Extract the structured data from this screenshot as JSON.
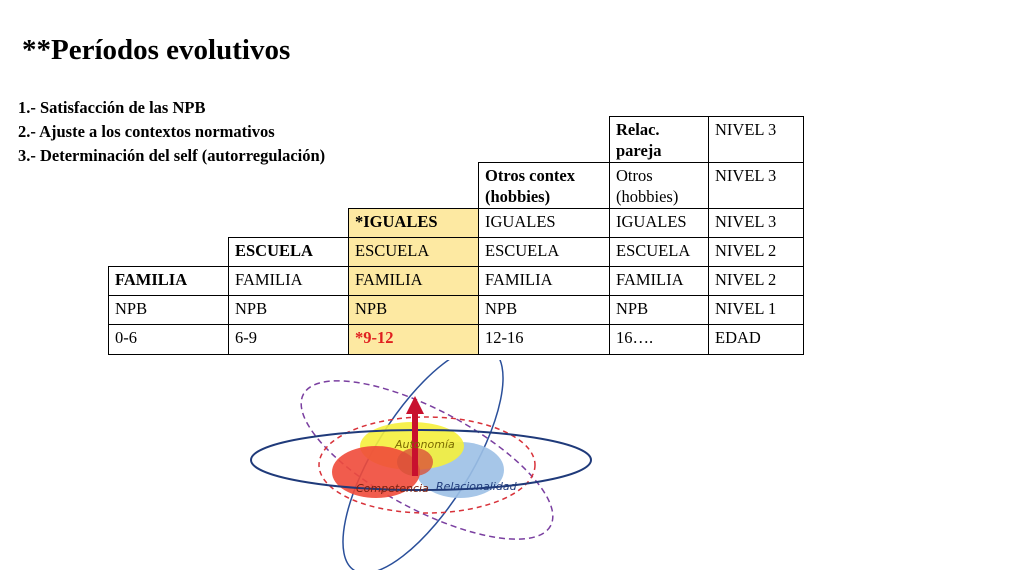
{
  "title": "**Períodos evolutivos",
  "points": [
    "1.- Satisfacción de las NPB",
    "2.- Ajuste a los contextos normativos",
    "3.- Determinación del self (autorregulación)"
  ],
  "table": {
    "row_relac": [
      "Relac. pareja",
      "NIVEL 3"
    ],
    "row_otros": [
      "Otros contex (hobbies)",
      "Otros (hobbies)",
      "NIVEL 3"
    ],
    "row_iguales": [
      "*IGUALES",
      "IGUALES",
      "IGUALES",
      "NIVEL 3"
    ],
    "row_escuela": [
      "ESCUELA",
      "ESCUELA",
      "ESCUELA",
      "ESCUELA",
      "NIVEL 2"
    ],
    "row_familia": [
      "FAMILIA",
      "FAMILIA",
      "FAMILIA",
      "FAMILIA",
      "FAMILIA",
      "NIVEL 2"
    ],
    "row_npb": [
      "NPB",
      "NPB",
      "NPB",
      "NPB",
      "NPB",
      "NIVEL 1"
    ],
    "row_edad": [
      "0-6",
      "6-9",
      "*9-12",
      "12-16",
      "16….",
      "EDAD"
    ]
  },
  "diagram": {
    "autonomia": "Autonomía",
    "competencia": "Competencia",
    "relacionalidad": "Relacionalidad",
    "colors": {
      "yellow": "#f5f03c",
      "red": "#f04a3a",
      "blue": "#9cc0e6",
      "arrow": "#c8102e",
      "orbit": "#1f3a7a",
      "dashed_red": "#d8323a",
      "dashed_purple": "#7a3fa0"
    }
  }
}
